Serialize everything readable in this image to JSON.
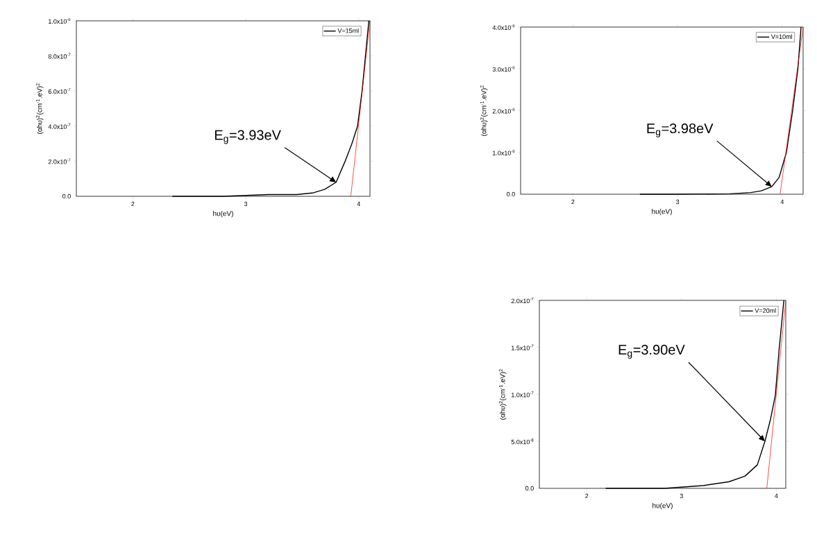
{
  "chart_data": [
    {
      "type": "line",
      "xlabel": "hυ(eV)",
      "ylabel": "(αhυ)$^{2}$(cm$^{-1}$.eV)$^{2}$",
      "legend": "top right",
      "xlim": [
        1.5,
        4.1
      ],
      "ylim": [
        0,
        1e-06
      ],
      "xticks": [
        2,
        3,
        4
      ],
      "yticks": [
        {
          "value": 0,
          "label": "0.0"
        },
        {
          "value": 2e-07,
          "label": "2.0x10$^{-7}$"
        },
        {
          "value": 4e-07,
          "label": "4.0x10$^{-7}$"
        },
        {
          "value": 6e-07,
          "label": "6.0x10$^{-7}$"
        },
        {
          "value": 8e-07,
          "label": "8.0x10$^{-7}$"
        },
        {
          "value": 1e-06,
          "label": "1.0x10$^{-6}$"
        }
      ],
      "series": [
        {
          "name": "V=15ml",
          "color": "#000000",
          "x": [
            2.35,
            2.8,
            3.2,
            3.45,
            3.6,
            3.7,
            3.8,
            3.88,
            3.94,
            3.99,
            4.03,
            4.06,
            4.09
          ],
          "values": [
            0,
            0,
            1e-08,
            1e-08,
            2e-08,
            4e-08,
            8e-08,
            2e-07,
            3e-07,
            4e-07,
            6e-07,
            8e-07,
            1e-06
          ]
        },
        {
          "type": "line",
          "color": "#ff0000",
          "x": [
            3.93,
            4.1
          ],
          "values": [
            0,
            1e-06
          ]
        }
      ],
      "annotations": [
        {
          "text": "E$_{g}$=3.93eV",
          "x": 3.8,
          "y": 8e-08
        }
      ]
    },
    {
      "type": "line",
      "xlabel": "hυ(eV)",
      "ylabel": "(αhυ)$^{2}$(cm$^{-1}$.eV)$^{2}$",
      "legend": "top right",
      "xlim": [
        1.5,
        4.2
      ],
      "ylim": [
        0,
        4e-06
      ],
      "xticks": [
        2,
        3,
        4
      ],
      "yticks": [
        {
          "value": 0,
          "label": "0.0"
        },
        {
          "value": 1e-06,
          "label": "1.0x10$^{-6}$"
        },
        {
          "value": 2e-06,
          "label": "2.0x10$^{-6}$"
        },
        {
          "value": 3e-06,
          "label": "3.0x10$^{-6}$"
        },
        {
          "value": 4e-06,
          "label": "4.0x10$^{-6}$"
        }
      ],
      "series": [
        {
          "name": "V=10ml",
          "color": "#000000",
          "x": [
            2.64,
            3.0,
            3.5,
            3.7,
            3.8,
            3.9,
            3.97,
            4.04,
            4.1,
            4.15,
            4.18
          ],
          "values": [
            0,
            0,
            1e-08,
            4e-08,
            8e-08,
            1.8e-07,
            4e-07,
            1e-06,
            2e-06,
            3e-06,
            4e-06
          ]
        },
        {
          "type": "line",
          "color": "#ff0000",
          "x": [
            3.98,
            4.2
          ],
          "values": [
            0,
            4e-06
          ]
        }
      ],
      "annotations": [
        {
          "text": "E$_{g}$=3.98eV",
          "x": 3.9,
          "y": 1.8e-07
        }
      ]
    },
    {
      "type": "line",
      "xlabel": "hυ(eV)",
      "ylabel": "(αhυ)$^{2}$(cm$^{-1}$.eV)$^{2}$",
      "legend": "top right",
      "xlim": [
        1.5,
        4.1
      ],
      "ylim": [
        0,
        2e-07
      ],
      "xticks": [
        2,
        3,
        4
      ],
      "yticks": [
        {
          "value": 0,
          "label": "0.0"
        },
        {
          "value": 5e-08,
          "label": "5.0x10$^{-8}$"
        },
        {
          "value": 1e-07,
          "label": "1.0x10$^{-7}$"
        },
        {
          "value": 1.5e-07,
          "label": "1.5x10$^{-7}$"
        },
        {
          "value": 2e-07,
          "label": "2.0x10$^{-7}$"
        }
      ],
      "series": [
        {
          "name": "V=20ml",
          "color": "#000000",
          "x": [
            2.2,
            2.82,
            3.23,
            3.5,
            3.67,
            3.8,
            3.88,
            3.94,
            3.99,
            4.03,
            4.08
          ],
          "values": [
            0,
            0,
            3e-09,
            7e-09,
            1.3e-08,
            2.5e-08,
            5e-08,
            7.4e-08,
            9.9e-08,
            1.48e-07,
            2e-07
          ]
        },
        {
          "type": "line",
          "color": "#ff0000",
          "x": [
            3.9,
            4.1
          ],
          "values": [
            0,
            2e-07
          ]
        }
      ],
      "annotations": [
        {
          "text": "E$_{g}$=3.90eV",
          "x": 3.88,
          "y": 5e-08
        }
      ]
    }
  ]
}
